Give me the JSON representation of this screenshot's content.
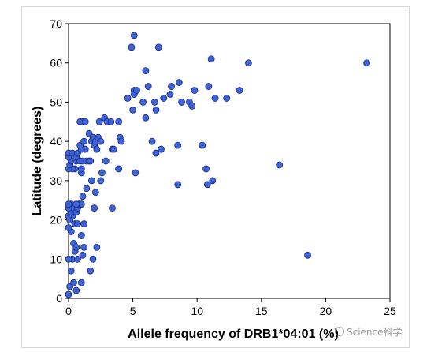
{
  "chart_data": {
    "type": "scatter",
    "title": "",
    "xlabel": "Allele frequency of DRB1*04:01 (%)",
    "ylabel": "Latitude (degrees)",
    "xlim": [
      0,
      25
    ],
    "ylim": [
      0,
      70
    ],
    "xticks": [
      0,
      5,
      10,
      15,
      20,
      25
    ],
    "yticks": [
      0,
      10,
      20,
      30,
      40,
      50,
      60,
      70
    ],
    "grid": false,
    "legend": "none",
    "marker_color": "#3d63d6",
    "marker_edge": "#1a2a80",
    "points": [
      [
        0.0,
        1
      ],
      [
        0.1,
        3
      ],
      [
        0.2,
        7
      ],
      [
        0.3,
        10
      ],
      [
        0.0,
        10
      ],
      [
        0.6,
        2
      ],
      [
        0.4,
        4
      ],
      [
        1.0,
        4
      ],
      [
        0.7,
        10
      ],
      [
        1.1,
        11
      ],
      [
        1.7,
        7
      ],
      [
        1.9,
        10
      ],
      [
        2.2,
        13
      ],
      [
        1.2,
        13
      ],
      [
        0.5,
        12
      ],
      [
        0.4,
        14
      ],
      [
        0.6,
        13
      ],
      [
        0.2,
        17
      ],
      [
        0.5,
        19
      ],
      [
        0.7,
        19
      ],
      [
        1.0,
        16
      ],
      [
        0.0,
        18
      ],
      [
        0.1,
        20
      ],
      [
        0.3,
        21
      ],
      [
        0.0,
        21
      ],
      [
        0.2,
        22
      ],
      [
        0.2,
        24
      ],
      [
        0.4,
        23
      ],
      [
        0.6,
        22
      ],
      [
        0.7,
        23
      ],
      [
        0.8,
        24
      ],
      [
        1.0,
        24
      ],
      [
        2.0,
        23
      ],
      [
        0.0,
        23
      ],
      [
        0.0,
        24
      ],
      [
        0.6,
        24
      ],
      [
        1.2,
        19
      ],
      [
        1.1,
        26
      ],
      [
        1.4,
        28
      ],
      [
        2.1,
        27
      ],
      [
        2.5,
        30
      ],
      [
        1.0,
        32
      ],
      [
        0.5,
        33
      ],
      [
        0.3,
        33
      ],
      [
        0.0,
        33
      ],
      [
        0.1,
        34
      ],
      [
        0.2,
        35
      ],
      [
        0.0,
        36
      ],
      [
        0.0,
        37
      ],
      [
        0.3,
        37
      ],
      [
        0.6,
        35
      ],
      [
        0.6,
        36
      ],
      [
        0.7,
        37
      ],
      [
        0.9,
        35
      ],
      [
        1.0,
        33
      ],
      [
        1.1,
        35
      ],
      [
        1.4,
        35
      ],
      [
        1.6,
        35
      ],
      [
        1.7,
        35
      ],
      [
        1.8,
        30
      ],
      [
        2.6,
        32
      ],
      [
        2.9,
        35
      ],
      [
        3.4,
        38
      ],
      [
        3.5,
        38
      ],
      [
        1.3,
        38
      ],
      [
        1.0,
        38
      ],
      [
        0.9,
        39
      ],
      [
        1.2,
        40
      ],
      [
        0.9,
        45
      ],
      [
        1.1,
        45
      ],
      [
        1.3,
        45
      ],
      [
        1.6,
        42
      ],
      [
        1.8,
        40
      ],
      [
        1.9,
        41
      ],
      [
        2.0,
        39
      ],
      [
        2.1,
        40
      ],
      [
        2.2,
        38
      ],
      [
        2.3,
        41
      ],
      [
        2.5,
        40
      ],
      [
        2.4,
        45
      ],
      [
        2.8,
        46
      ],
      [
        3.0,
        45
      ],
      [
        3.3,
        45
      ],
      [
        3.4,
        23
      ],
      [
        3.9,
        45
      ],
      [
        4.0,
        41
      ],
      [
        4.1,
        40
      ],
      [
        3.9,
        33
      ],
      [
        5.2,
        32
      ],
      [
        5.8,
        50
      ],
      [
        6.0,
        46
      ],
      [
        6.2,
        54
      ],
      [
        5.1,
        53
      ],
      [
        5.0,
        48
      ],
      [
        4.6,
        51
      ],
      [
        5.1,
        52
      ],
      [
        5.3,
        53
      ],
      [
        4.9,
        64
      ],
      [
        5.1,
        67
      ],
      [
        6.0,
        58
      ],
      [
        7.0,
        64
      ],
      [
        6.5,
        40
      ],
      [
        6.8,
        37
      ],
      [
        7.2,
        38
      ],
      [
        6.8,
        48
      ],
      [
        6.7,
        50
      ],
      [
        7.4,
        51
      ],
      [
        7.9,
        52
      ],
      [
        8.0,
        54
      ],
      [
        8.6,
        55
      ],
      [
        8.8,
        50
      ],
      [
        8.5,
        39
      ],
      [
        8.5,
        29
      ],
      [
        9.4,
        50
      ],
      [
        9.8,
        53
      ],
      [
        9.6,
        49
      ],
      [
        10.4,
        39
      ],
      [
        10.8,
        29
      ],
      [
        10.7,
        33
      ],
      [
        11.2,
        30
      ],
      [
        10.9,
        54
      ],
      [
        11.4,
        51
      ],
      [
        11.1,
        61
      ],
      [
        12.3,
        51
      ],
      [
        13.3,
        53
      ],
      [
        14.0,
        60
      ],
      [
        16.4,
        34
      ],
      [
        18.6,
        11
      ],
      [
        23.2,
        60
      ]
    ]
  },
  "watermark": {
    "text": "Science科学"
  }
}
